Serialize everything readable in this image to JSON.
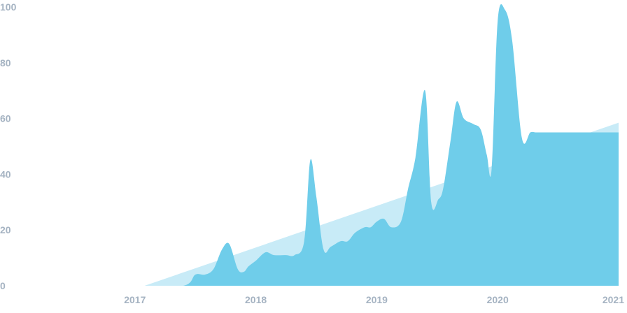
{
  "chart_data": {
    "type": "area",
    "title": "",
    "xlabel": "",
    "ylabel": "",
    "xlim": [
      2016.0,
      2021.0
    ],
    "ylim": [
      0,
      100
    ],
    "x_ticks": [
      "2017",
      "2018",
      "2019",
      "2020",
      "2021"
    ],
    "y_ticks": [
      "0",
      "20",
      "40",
      "60",
      "80",
      "100"
    ],
    "grid": false,
    "legend": "none",
    "colors": {
      "series": "#6fcdea",
      "trend": "#c8ebf7",
      "tick_text": "#a5b3c2"
    },
    "series": [
      {
        "x": [
          2017.08,
          2021.0
        ],
        "y": [
          0,
          58.5
        ]
      },
      {
        "x": [
          2017.0,
          2017.4,
          2017.5,
          2017.58,
          2017.65,
          2017.72,
          2017.78,
          2017.85,
          2017.9,
          2017.94,
          2018.0,
          2018.08,
          2018.15,
          2018.25,
          2018.32,
          2018.4,
          2018.45,
          2018.5,
          2018.56,
          2018.62,
          2018.7,
          2018.76,
          2018.82,
          2018.9,
          2018.95,
          2019.0,
          2019.06,
          2019.12,
          2019.2,
          2019.26,
          2019.32,
          2019.4,
          2019.45,
          2019.51,
          2019.55,
          2019.61,
          2019.66,
          2019.72,
          2019.8,
          2019.86,
          2019.91,
          2019.95,
          2020.0,
          2020.06,
          2020.12,
          2020.2,
          2020.27,
          2020.32,
          2020.38,
          2020.43,
          2020.5,
          2020.56,
          2020.63,
          2020.68,
          2020.72,
          2020.75,
          2020.78,
          2020.82,
          2020.88,
          2020.92,
          2020.95,
          2021.0
        ],
        "y": [
          0,
          0,
          4,
          4,
          6,
          13,
          15,
          6,
          5,
          7,
          9,
          12,
          11,
          11,
          11,
          16,
          45,
          32,
          13,
          14,
          16,
          16,
          19,
          21,
          21,
          23,
          24,
          21,
          23,
          35,
          46,
          70,
          30,
          31,
          35,
          52,
          66,
          60,
          58,
          56,
          47,
          42,
          95,
          99,
          88,
          53,
          55,
          55,
          55,
          55,
          55,
          55,
          55,
          55,
          55,
          55,
          55,
          55,
          55,
          55,
          55,
          55
        ]
      }
    ]
  }
}
